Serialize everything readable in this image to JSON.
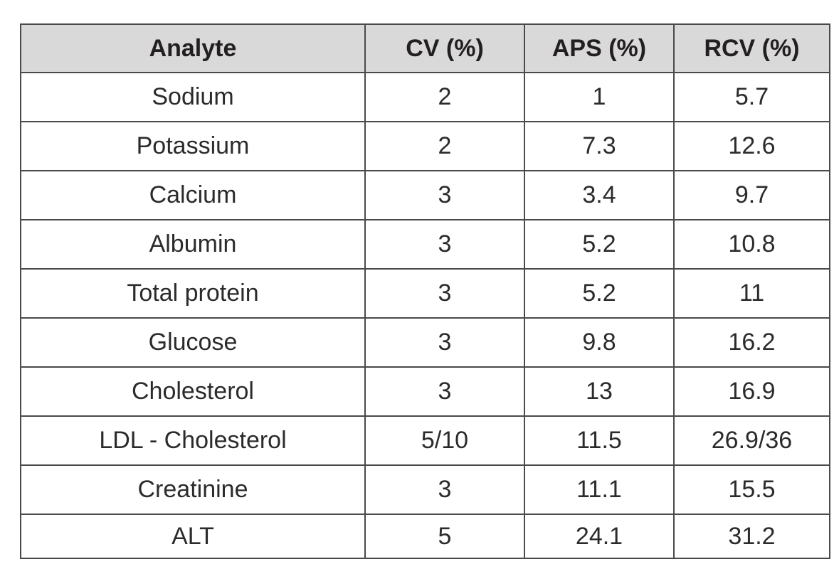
{
  "table": {
    "headers": [
      "Analyte",
      "CV (%)",
      "APS (%)",
      "RCV (%)"
    ],
    "rows": [
      [
        "Sodium",
        "2",
        "1",
        "5.7"
      ],
      [
        "Potassium",
        "2",
        "7.3",
        "12.6"
      ],
      [
        "Calcium",
        "3",
        "3.4",
        "9.7"
      ],
      [
        "Albumin",
        "3",
        "5.2",
        "10.8"
      ],
      [
        "Total protein",
        "3",
        "5.2",
        "11"
      ],
      [
        "Glucose",
        "3",
        "9.8",
        "16.2"
      ],
      [
        "Cholesterol",
        "3",
        "13",
        "16.9"
      ],
      [
        "LDL - Cholesterol",
        "5/10",
        "11.5",
        "26.9/36"
      ],
      [
        "Creatinine",
        "3",
        "11.1",
        "15.5"
      ],
      [
        "ALT",
        "5",
        "24.1",
        "31.2"
      ]
    ]
  },
  "colors": {
    "header_background": "#d9d9d9",
    "border": "#4a4a4a",
    "text": "#231f20"
  }
}
